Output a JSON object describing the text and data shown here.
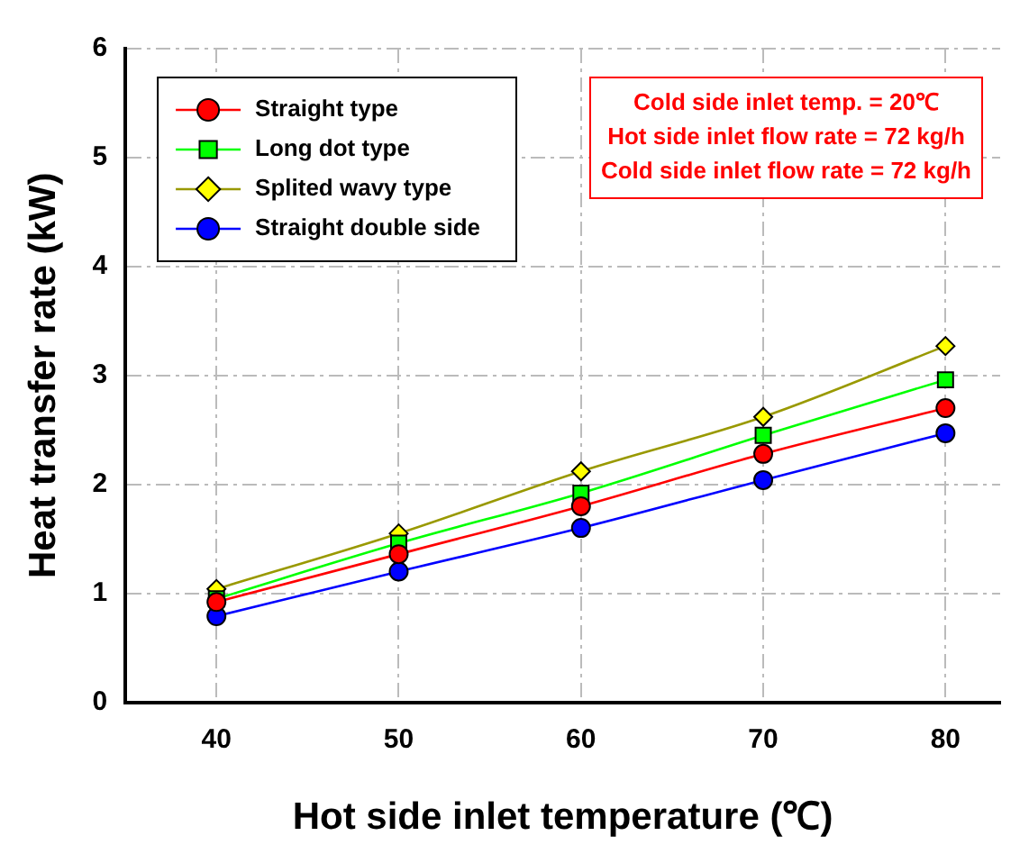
{
  "chart_data": {
    "type": "line",
    "xlabel": "Hot side inlet temperature (℃)",
    "ylabel": "Heat transfer rate (kW)",
    "x": [
      40,
      50,
      60,
      70,
      80
    ],
    "xlim": [
      35,
      83
    ],
    "xticks": [
      40,
      50,
      60,
      70,
      80
    ],
    "ylim": [
      0,
      6
    ],
    "yticks": [
      0,
      1,
      2,
      3,
      4,
      5,
      6
    ],
    "grid": true,
    "legend": "top left",
    "annotations": [
      "Cold side inlet temp. = 20℃",
      "Hot side inlet flow rate = 72 kg/h",
      "Cold side inlet flow rate = 72 kg/h"
    ],
    "series": [
      {
        "name": "Straight type",
        "color": "#ff0000",
        "marker": "circle",
        "values": [
          0.92,
          1.36,
          1.8,
          2.28,
          2.7
        ]
      },
      {
        "name": "Long dot type",
        "color": "#00ff00",
        "marker": "square",
        "values": [
          0.95,
          1.46,
          1.92,
          2.45,
          2.96
        ]
      },
      {
        "name": "Splited wavy type",
        "color": "#ffff00",
        "marker": "diamond",
        "values": [
          1.04,
          1.55,
          2.12,
          2.62,
          3.27
        ]
      },
      {
        "name": "Straight double side",
        "color": "#0000ff",
        "marker": "circle",
        "values": [
          0.79,
          1.2,
          1.6,
          2.04,
          2.47
        ]
      }
    ]
  }
}
